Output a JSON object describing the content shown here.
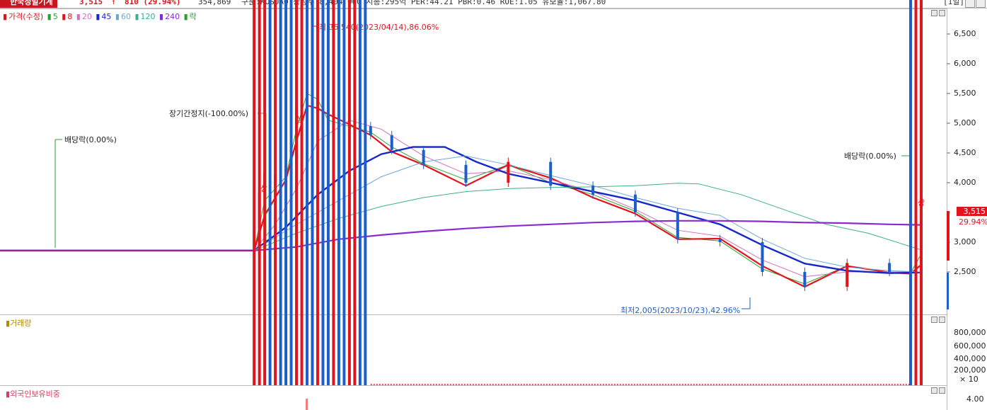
{
  "header": {
    "name": "한국정밀기계",
    "price": "3,515",
    "arrow": "↑",
    "change": "810 (29.94%)",
    "volume": "354,869",
    "info": "구분:KOSDAQ 상장주:8,404,000 시총:295억 PER:44.21 PBR:0.46 ROE:1.05 유보율:1,067.80",
    "period": "[1일]"
  },
  "legend": {
    "price_label": "가격(수정)",
    "ma5": "5",
    "ma8": "8",
    "ma20": "20",
    "ma45": "45",
    "ma60": "60",
    "ma120": "120",
    "ma240": "240",
    "ex_label": "락"
  },
  "colors": {
    "up": "#e1141e",
    "down": "#1c5fc8",
    "ma5": "#2ca02c",
    "ma8": "#e1141e",
    "ma20": "#d070c0",
    "ma45": "#1428c8",
    "ma60": "#6aa8d8",
    "ma120": "#3cb08a",
    "ma240": "#8a2bd2"
  },
  "annotations": {
    "high": "최고6,540(2023/04/14),86.06%",
    "low": "최저2,005(2023/10/23),42.96%",
    "suspension": "장기간정지(-100.00%)",
    "dividend_left": "배당락(0.00%)",
    "dividend_right": "배당락(0.00%)",
    "upper_limit_mark": "상"
  },
  "current": {
    "price": "3,515",
    "pct": "29.94%"
  },
  "volume_panel": {
    "title": "거래량",
    "multiplier": "× 10"
  },
  "foreign_panel": {
    "title": "외국인보유비중",
    "tick": "4.00"
  },
  "chart_data": [
    {
      "type": "line",
      "title": "가격(수정)",
      "y_ticks": [
        "6,500",
        "6,000",
        "5,500",
        "5,000",
        "4,500",
        "4,000",
        "3,500",
        "3,000",
        "2,500"
      ],
      "ylim": [
        2000,
        6700
      ],
      "x_index_range": [
        0,
        174
      ],
      "series": [
        {
          "name": "가격(수정)",
          "x": [
            0,
            48,
            49,
            50,
            52,
            54,
            56,
            58,
            60,
            62,
            66,
            70,
            74,
            80,
            88,
            96,
            104,
            112,
            120,
            128,
            136,
            144,
            152,
            160,
            168,
            172,
            173,
            174
          ],
          "values": [
            2860,
            2860,
            3850,
            4150,
            3950,
            4300,
            5200,
            6150,
            5200,
            4950,
            4950,
            4800,
            4550,
            4300,
            4000,
            4350,
            3950,
            3800,
            3500,
            3050,
            3000,
            2500,
            2250,
            2650,
            2500,
            2480,
            2900,
            3515
          ]
        },
        {
          "name": "5",
          "x": [
            0,
            48,
            50,
            54,
            56,
            58,
            60,
            62,
            66,
            70,
            74,
            80,
            88,
            96,
            104,
            112,
            120,
            128,
            136,
            144,
            152,
            160,
            168,
            172,
            174
          ],
          "values": [
            2860,
            2860,
            3700,
            4100,
            4900,
            5500,
            5400,
            5050,
            4950,
            4850,
            4600,
            4320,
            4050,
            4300,
            4000,
            3800,
            3520,
            3080,
            3020,
            2550,
            2300,
            2600,
            2490,
            2480,
            2800
          ]
        },
        {
          "name": "8",
          "x": [
            0,
            48,
            50,
            54,
            56,
            58,
            60,
            62,
            66,
            70,
            74,
            80,
            88,
            96,
            104,
            112,
            120,
            128,
            136,
            144,
            152,
            160,
            168,
            172,
            174
          ],
          "values": [
            2860,
            2860,
            3450,
            4050,
            4700,
            5300,
            5250,
            5150,
            4980,
            4800,
            4520,
            4300,
            3950,
            4300,
            4080,
            3750,
            3480,
            3050,
            3060,
            2600,
            2250,
            2600,
            2490,
            2470,
            2620
          ]
        },
        {
          "name": "20",
          "x": [
            0,
            48,
            52,
            56,
            60,
            66,
            72,
            80,
            88,
            96,
            104,
            112,
            120,
            128,
            136,
            144,
            152,
            160,
            168,
            174
          ],
          "values": [
            2860,
            2860,
            3300,
            3900,
            4700,
            5050,
            4900,
            4450,
            4150,
            4200,
            4050,
            3850,
            3550,
            3200,
            3100,
            2700,
            2420,
            2500,
            2500,
            2500
          ]
        },
        {
          "name": "45",
          "x": [
            0,
            48,
            54,
            60,
            66,
            72,
            78,
            84,
            90,
            96,
            104,
            112,
            120,
            128,
            136,
            144,
            152,
            160,
            168,
            174
          ],
          "values": [
            2860,
            2860,
            3250,
            3800,
            4200,
            4480,
            4600,
            4600,
            4350,
            4150,
            4000,
            3850,
            3700,
            3500,
            3300,
            2950,
            2640,
            2520,
            2480,
            2490
          ]
        },
        {
          "name": "60",
          "x": [
            0,
            48,
            56,
            64,
            72,
            80,
            88,
            96,
            104,
            112,
            120,
            128,
            136,
            144,
            152,
            160,
            168,
            174
          ],
          "values": [
            2860,
            2860,
            3300,
            3700,
            4100,
            4350,
            4450,
            4300,
            4120,
            3950,
            3750,
            3570,
            3450,
            3050,
            2730,
            2580,
            2520,
            2500
          ]
        },
        {
          "name": "120",
          "x": [
            0,
            48,
            56,
            64,
            72,
            80,
            88,
            96,
            104,
            112,
            120,
            128,
            132,
            140,
            148,
            156,
            164,
            174
          ],
          "values": [
            2860,
            2860,
            3150,
            3400,
            3600,
            3750,
            3850,
            3900,
            3920,
            3930,
            3950,
            3990,
            3980,
            3800,
            3550,
            3300,
            3150,
            2870
          ]
        },
        {
          "name": "240",
          "x": [
            0,
            48,
            56,
            64,
            72,
            80,
            88,
            96,
            104,
            112,
            120,
            128,
            136,
            144,
            152,
            160,
            168,
            174
          ],
          "values": [
            2860,
            2860,
            2920,
            3050,
            3120,
            3180,
            3230,
            3270,
            3300,
            3330,
            3350,
            3360,
            3360,
            3350,
            3330,
            3320,
            3300,
            3290
          ]
        }
      ]
    },
    {
      "type": "bar",
      "title": "거래량",
      "y_ticks": [
        "800,000",
        "600,000",
        "400,000",
        "200,000"
      ],
      "ylim": [
        0,
        1000000
      ],
      "series": [
        {
          "name": "거래량",
          "x": [
            48,
            49,
            50,
            51,
            52,
            53,
            54,
            55,
            56,
            57,
            58,
            59,
            60,
            61,
            62,
            63,
            64,
            65,
            66,
            67,
            68,
            69,
            172,
            173,
            174
          ],
          "values": [
            330000,
            880000,
            470000,
            190000,
            110000,
            60000,
            30000,
            20000,
            200000,
            450000,
            460000,
            230000,
            120000,
            80000,
            40000,
            190000,
            30000,
            20000,
            100000,
            40000,
            30000,
            20000,
            15000,
            70000,
            35000
          ],
          "direction": [
            "up",
            "up",
            "up",
            "down",
            "up",
            "down",
            "down",
            "down",
            "up",
            "up",
            "down",
            "down",
            "up",
            "down",
            "down",
            "up",
            "down",
            "down",
            "up",
            "up",
            "down",
            "down",
            "down",
            "up",
            "up"
          ]
        }
      ]
    }
  ]
}
